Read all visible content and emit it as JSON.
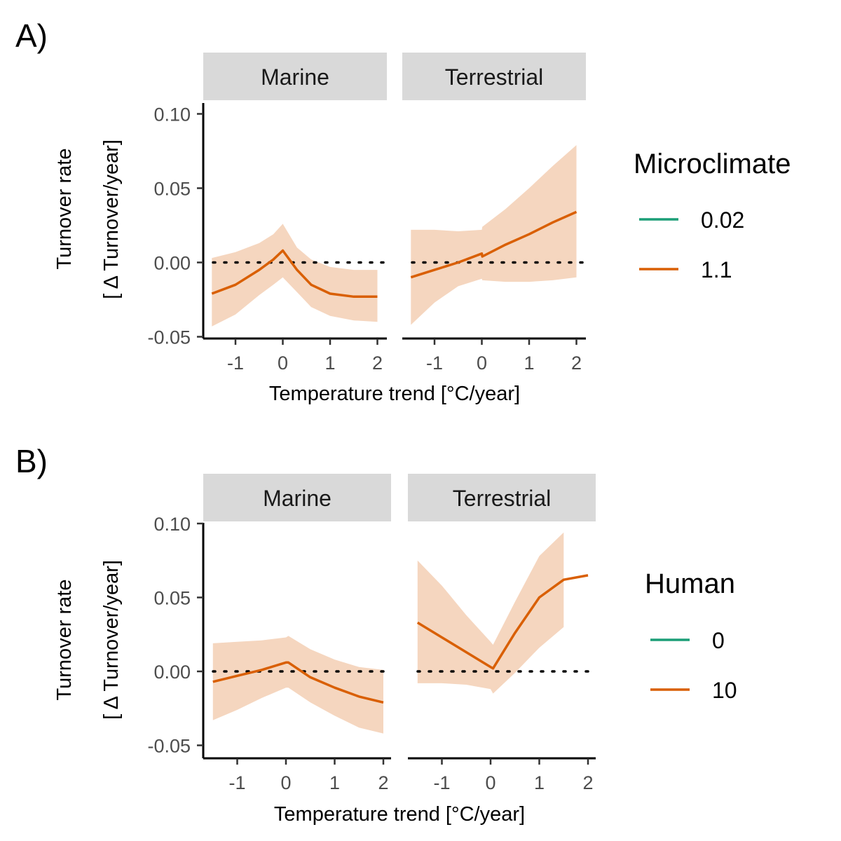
{
  "colors": {
    "series_1": "#1b9e77",
    "series_2": "#d95f02",
    "ribbon": "#f5d6bf",
    "strip": "#d9d9d9"
  },
  "figures": [
    {
      "id": "A",
      "panel_label": "A)",
      "legend": {
        "title": "Microclimate",
        "entries": [
          "0.02",
          "1.1"
        ]
      }
    },
    {
      "id": "B",
      "panel_label": "B)",
      "legend": {
        "title": "Human",
        "entries": [
          "0",
          "10"
        ]
      }
    }
  ],
  "chart_data": [
    {
      "type": "line",
      "panel": "A)",
      "xlabel": "Temperature trend [°C/year]",
      "ylabel": [
        "Turnover rate",
        "[ Δ Turnover/year]"
      ],
      "ylim": [
        -0.05,
        0.1
      ],
      "yticks": [
        "0.10",
        "0.05",
        "0.00",
        "-0.05"
      ],
      "yticks_values": [
        0.1,
        0.05,
        0.0,
        -0.05
      ],
      "xticks": [
        "-1",
        "0",
        "1",
        "2"
      ],
      "xticks_values": [
        -1,
        0,
        1,
        2
      ],
      "reference_line_y": 0,
      "legend_title": "Microclimate",
      "legend_entries": [
        "0.02",
        "1.1"
      ],
      "facets": [
        {
          "name": "Marine",
          "xlim": [
            -1.7,
            2.15
          ],
          "series": [
            {
              "name": "1.1",
              "color": "#d95f02",
              "x": [
                -1.5,
                -1.0,
                -0.5,
                -0.2,
                0.0,
                0.0,
                0.3,
                0.6,
                1.0,
                1.5,
                2.0
              ],
              "y": [
                -0.021,
                -0.015,
                -0.005,
                0.002,
                0.008,
                0.008,
                -0.005,
                -0.015,
                -0.021,
                -0.023,
                -0.023
              ],
              "lower": [
                -0.043,
                -0.035,
                -0.022,
                -0.015,
                -0.01,
                -0.01,
                -0.02,
                -0.03,
                -0.036,
                -0.039,
                -0.04
              ],
              "upper": [
                0.003,
                0.007,
                0.013,
                0.019,
                0.026,
                0.026,
                0.01,
                0.002,
                -0.003,
                -0.005,
                -0.005
              ]
            }
          ]
        },
        {
          "name": "Terrestrial",
          "xlim": [
            -1.55,
            2.15
          ],
          "series": [
            {
              "name": "1.1",
              "color": "#d95f02",
              "x": [
                -1.5,
                -1.0,
                -0.5,
                0.0,
                0.01,
                0.5,
                1.0,
                1.5,
                2.0
              ],
              "y": [
                -0.01,
                -0.005,
                0.0,
                0.006,
                0.004,
                0.012,
                0.019,
                0.027,
                0.034
              ],
              "lower": [
                -0.042,
                -0.027,
                -0.016,
                -0.011,
                -0.012,
                -0.013,
                -0.013,
                -0.012,
                -0.01
              ],
              "upper": [
                0.022,
                0.022,
                0.021,
                0.022,
                0.024,
                0.036,
                0.05,
                0.065,
                0.079
              ]
            }
          ]
        }
      ]
    },
    {
      "type": "line",
      "panel": "B)",
      "xlabel": "Temperature trend [°C/year]",
      "ylabel": [
        "Turnover rate",
        "[ Δ Turnover/year]"
      ],
      "ylim": [
        -0.05,
        0.1
      ],
      "yticks": [
        "0.10",
        "0.05",
        "0.00",
        "-0.05"
      ],
      "yticks_values": [
        0.1,
        0.05,
        0.0,
        -0.05
      ],
      "xticks": [
        "-1",
        "0",
        "1",
        "2"
      ],
      "xticks_values": [
        -1,
        0,
        1,
        2
      ],
      "reference_line_y": 0,
      "legend_title": "Human",
      "legend_entries": [
        "0",
        "10"
      ],
      "facets": [
        {
          "name": "Marine",
          "xlim": [
            -1.7,
            2.15
          ],
          "series": [
            {
              "name": "10",
              "color": "#d95f02",
              "x": [
                -1.5,
                -1.0,
                -0.5,
                0.0,
                0.05,
                0.5,
                1.0,
                1.5,
                2.0
              ],
              "y": [
                -0.007,
                -0.003,
                0.001,
                0.006,
                0.006,
                -0.004,
                -0.011,
                -0.017,
                -0.021
              ],
              "lower": [
                -0.033,
                -0.026,
                -0.018,
                -0.011,
                -0.011,
                -0.021,
                -0.03,
                -0.038,
                -0.042
              ],
              "upper": [
                0.019,
                0.02,
                0.021,
                0.023,
                0.024,
                0.015,
                0.008,
                0.003,
                0.001
              ]
            }
          ]
        },
        {
          "name": "Terrestrial",
          "xlim": [
            -1.55,
            2.05
          ],
          "series": [
            {
              "name": "10",
              "color": "#d95f02",
              "x": [
                -1.5,
                -1.0,
                -0.5,
                0.0,
                0.05,
                0.5,
                1.0,
                1.5,
                2.0
              ],
              "y": [
                0.033,
                0.023,
                0.013,
                0.003,
                0.002,
                0.026,
                0.05,
                0.062,
                0.065
              ],
              "lower": [
                -0.008,
                -0.008,
                -0.009,
                -0.012,
                -0.015,
                -0.001,
                0.016,
                0.03,
                null
              ],
              "upper": [
                0.075,
                0.058,
                0.038,
                0.02,
                0.018,
                0.047,
                0.078,
                0.094,
                null
              ]
            }
          ]
        }
      ]
    }
  ]
}
